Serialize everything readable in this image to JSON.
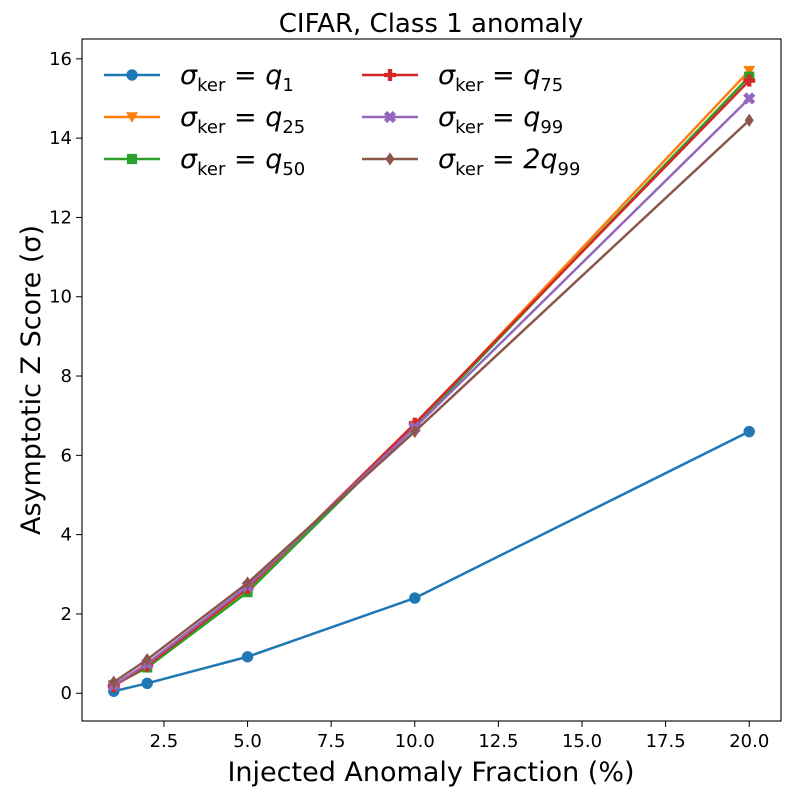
{
  "chart_data": {
    "type": "line",
    "title": "CIFAR, Class 1 anomaly",
    "xlabel": "Injected Anomaly Fraction (%)",
    "ylabel": "Asymptotic Z Score (σ)",
    "xlim": [
      0.05,
      20.95
    ],
    "ylim": [
      -0.7,
      16.5
    ],
    "xticks": [
      2.5,
      5.0,
      7.5,
      10.0,
      12.5,
      15.0,
      17.5,
      20.0
    ],
    "xtick_labels": [
      "2.5",
      "5.0",
      "7.5",
      "10.0",
      "12.5",
      "15.0",
      "17.5",
      "20.0"
    ],
    "yticks": [
      0,
      2,
      4,
      6,
      8,
      10,
      12,
      14,
      16
    ],
    "ytick_labels": [
      "0",
      "2",
      "4",
      "6",
      "8",
      "10",
      "12",
      "14",
      "16"
    ],
    "x": [
      1,
      2,
      5,
      10,
      20
    ],
    "legend_position": "top-left",
    "series": [
      {
        "name": "σ_ker = q_1",
        "label_main": "σ",
        "label_ker": "ker",
        "label_eq": " = ",
        "label_q": "q",
        "label_sub": "1",
        "color": "#1f77b4",
        "marker": "circle",
        "values": [
          0.05,
          0.25,
          0.92,
          2.4,
          6.6
        ]
      },
      {
        "name": "σ_ker = q_25",
        "label_main": "σ",
        "label_ker": "ker",
        "label_eq": " = ",
        "label_q": "q",
        "label_sub": "25",
        "color": "#ff7f0e",
        "marker": "triangle-down",
        "values": [
          0.2,
          0.68,
          2.6,
          6.75,
          15.7
        ]
      },
      {
        "name": "σ_ker = q_50",
        "label_main": "σ",
        "label_ker": "ker",
        "label_eq": " = ",
        "label_q": "q",
        "label_sub": "50",
        "color": "#2ca02c",
        "marker": "square",
        "values": [
          0.2,
          0.65,
          2.55,
          6.72,
          15.55
        ]
      },
      {
        "name": "σ_ker = q_75",
        "label_main": "σ",
        "label_ker": "ker",
        "label_eq": " = ",
        "label_q": "q",
        "label_sub": "75",
        "color": "#d62728",
        "marker": "plus",
        "values": [
          0.18,
          0.7,
          2.65,
          6.8,
          15.45
        ]
      },
      {
        "name": "σ_ker = q_99",
        "label_main": "σ",
        "label_ker": "ker",
        "label_eq": " = ",
        "label_q": "q",
        "label_sub": "99",
        "color": "#9467bd",
        "marker": "x",
        "values": [
          0.2,
          0.75,
          2.7,
          6.7,
          15.0
        ]
      },
      {
        "name": "σ_ker = 2q_99",
        "label_main": "σ",
        "label_ker": "ker",
        "label_eq": " = ",
        "label_q": "2q",
        "label_sub": "99",
        "color": "#8c564b",
        "marker": "diamond",
        "values": [
          0.28,
          0.85,
          2.78,
          6.6,
          14.45
        ]
      }
    ]
  }
}
